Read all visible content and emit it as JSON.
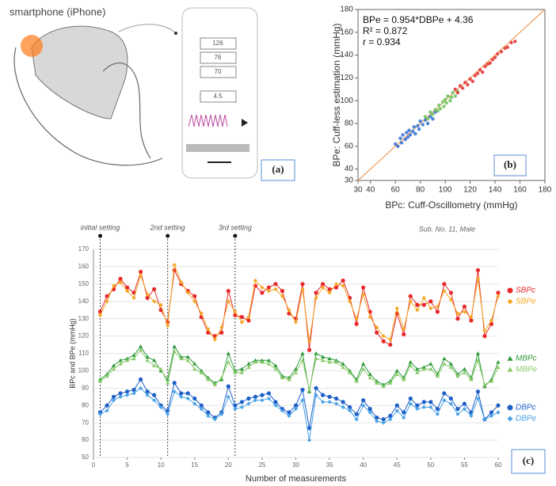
{
  "panel_a": {
    "caption": "smartphone (iPhone)",
    "readings": [
      "126",
      "76",
      "70",
      "4.5"
    ],
    "label": "(a)"
  },
  "chart_data": [
    {
      "type": "scatter",
      "xlabel": "BPc: Cuff-Oscillometry (mmHg)",
      "ylabel": "BPe: Cuff-less estimation (mmHg)",
      "annotations": [
        "BPe = 0.954*DBPe + 4.36",
        "R² = 0.872",
        "r = 0.934"
      ],
      "panel_label": "(b)",
      "xlim": [
        30,
        180
      ],
      "xticks": [
        30,
        40,
        60,
        80,
        100,
        120,
        140,
        160,
        180
      ],
      "ylim": [
        30,
        180
      ],
      "yticks": [
        30,
        40,
        60,
        80,
        100,
        120,
        140,
        160,
        180
      ],
      "series": [
        {
          "color": "#2f6fd1",
          "x": [
            60,
            62,
            64,
            65,
            66,
            68,
            69,
            70,
            71,
            72,
            74,
            75,
            76,
            78,
            79,
            80,
            82,
            84,
            86,
            88,
            90,
            92
          ],
          "y": [
            62,
            60,
            67,
            63,
            70,
            66,
            72,
            68,
            74,
            70,
            73,
            77,
            71,
            78,
            75,
            82,
            79,
            83,
            80,
            86,
            84,
            90
          ]
        },
        {
          "color": "#6bbf59",
          "x": [
            84,
            86,
            88,
            90,
            92,
            94,
            95,
            96,
            98,
            99,
            100,
            101,
            102,
            104,
            105,
            106,
            108,
            110
          ],
          "y": [
            86,
            84,
            90,
            88,
            92,
            91,
            96,
            93,
            99,
            95,
            101,
            98,
            104,
            100,
            103,
            107,
            104,
            108
          ]
        },
        {
          "color": "#e0302a",
          "x": [
            108,
            110,
            112,
            114,
            116,
            118,
            120,
            122,
            124,
            126,
            128,
            130,
            132,
            134,
            136,
            138,
            140,
            142,
            145,
            148,
            150,
            153,
            156
          ],
          "y": [
            110,
            107,
            113,
            111,
            116,
            114,
            119,
            117,
            122,
            124,
            127,
            125,
            130,
            132,
            133,
            136,
            138,
            141,
            143,
            146,
            147,
            151,
            152
          ]
        }
      ]
    },
    {
      "type": "line",
      "xlabel": "Number of measurements",
      "ylabel": "BPc and BPe (mmHg)",
      "note": "Sub. No. 11, Male",
      "panel_label": "(c)",
      "settings": [
        {
          "text": "initial setting",
          "x": 1
        },
        {
          "text": "2nd setting",
          "x": 11
        },
        {
          "text": "3rd setting",
          "x": 21
        }
      ],
      "xlim": [
        0,
        60
      ],
      "xticks": [
        0,
        5,
        10,
        15,
        20,
        25,
        30,
        35,
        40,
        45,
        50,
        55,
        60
      ],
      "ylim": [
        50,
        170
      ],
      "yticks": [
        50,
        60,
        70,
        80,
        90,
        100,
        110,
        120,
        130,
        140,
        150,
        160,
        170
      ],
      "x": [
        1,
        2,
        3,
        4,
        5,
        6,
        7,
        8,
        9,
        10,
        11,
        12,
        13,
        14,
        15,
        16,
        17,
        18,
        19,
        20,
        21,
        22,
        23,
        24,
        25,
        26,
        27,
        28,
        29,
        30,
        31,
        32,
        33,
        34,
        35,
        36,
        37,
        38,
        39,
        40,
        41,
        42,
        43,
        44,
        45,
        46,
        47,
        48,
        49,
        50,
        51,
        52,
        53,
        54,
        55,
        56,
        57,
        58,
        59,
        60
      ],
      "series": [
        {
          "name": "SBPc",
          "color": "#e8282a",
          "marker": "circle",
          "values": [
            134,
            143,
            147,
            153,
            148,
            145,
            157,
            142,
            147,
            135,
            128,
            158,
            150,
            146,
            143,
            131,
            122,
            120,
            122,
            146,
            132,
            131,
            129,
            149,
            145,
            148,
            150,
            146,
            133,
            130,
            150,
            112,
            145,
            150,
            147,
            148,
            152,
            142,
            127,
            148,
            134,
            122,
            117,
            115,
            133,
            121,
            143,
            138,
            138,
            140,
            134,
            150,
            145,
            130,
            137,
            129,
            158,
            120,
            127,
            145
          ]
        },
        {
          "name": "SBPe",
          "color": "#f5a623",
          "marker": "diamond",
          "values": [
            132,
            140,
            149,
            151,
            146,
            142,
            155,
            144,
            140,
            138,
            126,
            161,
            151,
            145,
            140,
            133,
            124,
            118,
            125,
            140,
            134,
            128,
            131,
            152,
            148,
            146,
            147,
            143,
            135,
            128,
            147,
            117,
            142,
            148,
            145,
            150,
            149,
            140,
            130,
            144,
            131,
            125,
            120,
            118,
            136,
            124,
            140,
            135,
            142,
            136,
            137,
            146,
            141,
            133,
            134,
            131,
            153,
            123,
            129,
            143
          ]
        },
        {
          "name": "MBPc",
          "color": "#2e9a3a",
          "marker": "triangle",
          "values": [
            95,
            98,
            103,
            106,
            107,
            109,
            114,
            108,
            106,
            100,
            95,
            114,
            108,
            108,
            104,
            100,
            96,
            93,
            95,
            110,
            100,
            101,
            104,
            106,
            106,
            106,
            103,
            97,
            96,
            101,
            110,
            88,
            110,
            108,
            107,
            106,
            104,
            100,
            95,
            104,
            98,
            94,
            92,
            94,
            100,
            96,
            105,
            101,
            102,
            104,
            98,
            107,
            104,
            98,
            101,
            96,
            110,
            91,
            95,
            105
          ]
        },
        {
          "name": "MBPe",
          "color": "#8acb6a",
          "marker": "triangle",
          "values": [
            94,
            97,
            101,
            104,
            106,
            107,
            112,
            106,
            103,
            101,
            93,
            111,
            107,
            106,
            101,
            99,
            95,
            92,
            96,
            105,
            99,
            99,
            102,
            105,
            105,
            104,
            101,
            96,
            95,
            99,
            106,
            89,
            107,
            106,
            105,
            105,
            102,
            99,
            94,
            101,
            96,
            93,
            91,
            93,
            98,
            95,
            103,
            99,
            101,
            101,
            97,
            104,
            102,
            97,
            99,
            95,
            106,
            92,
            94,
            102
          ]
        },
        {
          "name": "DBPc",
          "color": "#1f5fc8",
          "marker": "circle",
          "values": [
            76,
            80,
            85,
            87,
            88,
            89,
            95,
            88,
            86,
            80,
            77,
            93,
            87,
            87,
            84,
            80,
            76,
            73,
            76,
            91,
            80,
            82,
            84,
            85,
            86,
            87,
            82,
            78,
            76,
            80,
            89,
            67,
            90,
            86,
            85,
            84,
            82,
            79,
            75,
            83,
            78,
            73,
            72,
            74,
            80,
            76,
            84,
            80,
            82,
            82,
            78,
            87,
            84,
            78,
            81,
            76,
            88,
            72,
            76,
            80
          ]
        },
        {
          "name": "DBPe",
          "color": "#4aa3e8",
          "marker": "diamond",
          "values": [
            75,
            77,
            83,
            85,
            86,
            87,
            90,
            86,
            83,
            79,
            75,
            88,
            85,
            84,
            81,
            78,
            74,
            72,
            75,
            85,
            78,
            79,
            81,
            83,
            83,
            84,
            80,
            77,
            74,
            78,
            83,
            60,
            86,
            82,
            82,
            81,
            79,
            77,
            72,
            80,
            76,
            71,
            70,
            72,
            77,
            73,
            81,
            78,
            79,
            79,
            75,
            83,
            81,
            75,
            78,
            74,
            84,
            72,
            74,
            76
          ]
        }
      ]
    }
  ]
}
